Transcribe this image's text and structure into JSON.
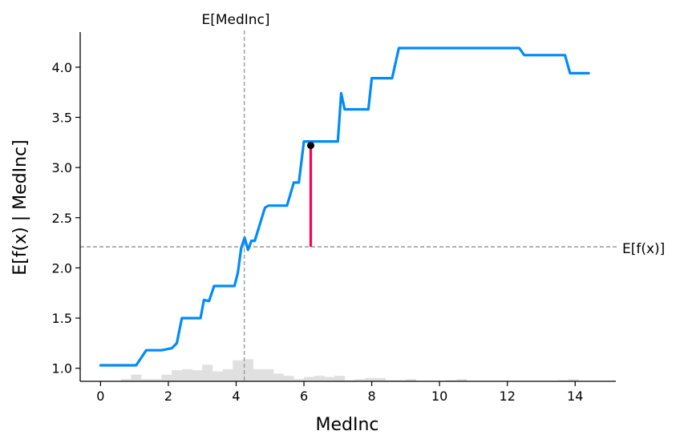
{
  "chart_data": {
    "type": "line",
    "title": "",
    "xlabel": "MedInc",
    "ylabel": "E[f(x) | MedInc]",
    "xlim": [
      -0.6,
      15.2
    ],
    "ylim": [
      0.87,
      4.35
    ],
    "x_ticks": [
      0,
      2,
      4,
      6,
      8,
      10,
      12,
      14
    ],
    "y_ticks": [
      1.0,
      1.5,
      2.0,
      2.5,
      3.0,
      3.5,
      4.0
    ],
    "x_tick_labels": [
      "0",
      "2",
      "4",
      "6",
      "8",
      "10",
      "12",
      "14"
    ],
    "y_tick_labels": [
      "1.0",
      "1.5",
      "2.0",
      "2.5",
      "3.0",
      "3.5",
      "4.0"
    ],
    "grid": false,
    "series": [
      {
        "color": "#008bfb",
        "x": [
          0,
          1.05,
          1.35,
          1.8,
          2.1,
          2.25,
          2.4,
          2.95,
          3.05,
          3.2,
          3.35,
          3.95,
          4.05,
          4.15,
          4.25,
          4.35,
          4.45,
          4.55,
          4.85,
          4.95,
          5.05,
          5.5,
          5.7,
          5.85,
          6.0,
          7.0,
          7.1,
          7.2,
          7.9,
          8.0,
          8.6,
          8.8,
          12.35,
          12.5,
          13.7,
          13.85,
          14.4
        ],
        "y": [
          1.03,
          1.03,
          1.18,
          1.18,
          1.2,
          1.25,
          1.5,
          1.5,
          1.68,
          1.67,
          1.82,
          1.82,
          1.95,
          2.2,
          2.3,
          2.18,
          2.27,
          2.27,
          2.6,
          2.62,
          2.62,
          2.62,
          2.85,
          2.85,
          3.26,
          3.26,
          3.74,
          3.58,
          3.58,
          3.89,
          3.89,
          4.19,
          4.19,
          4.12,
          4.12,
          3.94,
          3.94
        ]
      }
    ],
    "expected_value_line": {
      "y": 2.21,
      "label": "E[f(x)]",
      "color": "#999999"
    },
    "feature_mean_line": {
      "x": 4.24,
      "label": "E[MedInc]",
      "color": "#999999"
    },
    "highlight_point": {
      "x": 6.2,
      "y": 3.22,
      "color": "#000000"
    },
    "highlight_bar": {
      "x": 6.2,
      "y_from": 2.21,
      "y_to": 3.22,
      "color": "#ff0052"
    },
    "histogram": {
      "color": "#e0e0e0",
      "bins_start": [
        0.6,
        0.9,
        1.2,
        1.5,
        1.8,
        2.1,
        2.4,
        2.7,
        3.0,
        3.3,
        3.6,
        3.9,
        4.2,
        4.5,
        4.8,
        5.1,
        5.4,
        5.7,
        6.0,
        6.3,
        6.6,
        6.9,
        7.2,
        7.5,
        7.8,
        8.1,
        8.4,
        8.7,
        9.0,
        9.3,
        9.6,
        9.9,
        10.2,
        10.5,
        10.8,
        11.1,
        11.4,
        11.7,
        12.0,
        12.3,
        12.6,
        12.9,
        13.2,
        13.5,
        13.8
      ],
      "bin_width": 0.3,
      "counts": [
        0.1,
        0.3,
        0.1,
        0.1,
        0.3,
        0.5,
        0.55,
        0.5,
        0.75,
        0.45,
        0.55,
        0.95,
        1.0,
        0.55,
        0.55,
        0.35,
        0.25,
        0.1,
        0.2,
        0.25,
        0.2,
        0.25,
        0.05,
        0.1,
        0.15,
        0.15,
        0.05,
        0.05,
        0.1,
        0.0,
        0.0,
        0.0,
        0.05,
        0.1,
        0.0,
        0.0,
        0.0,
        0.0,
        0.0,
        0.0,
        0.0,
        0.0,
        0.0,
        0.05,
        0.1
      ],
      "max_height_data_units": 0.22
    }
  }
}
